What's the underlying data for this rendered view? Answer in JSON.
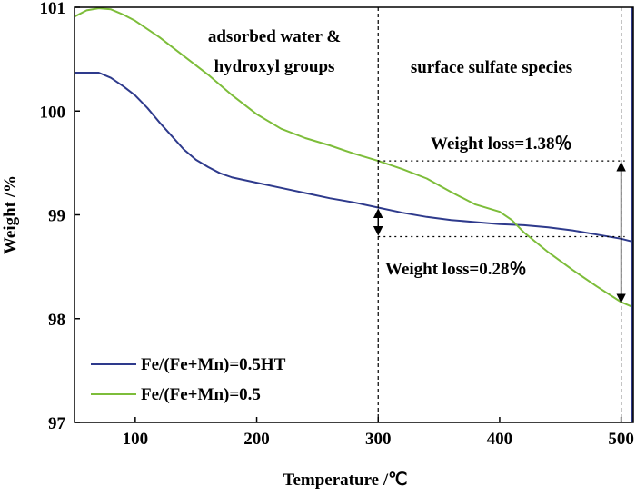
{
  "chart_data": {
    "type": "line",
    "xlabel": "Temperature /℃",
    "ylabel": "Weight /%",
    "xlim": [
      50,
      510
    ],
    "ylim": [
      97,
      101
    ],
    "xticks": [
      100,
      200,
      300,
      400,
      500
    ],
    "yticks": [
      97,
      98,
      99,
      100,
      101
    ],
    "grid": false,
    "legend_position": "bottom-left",
    "series": [
      {
        "name": "Fe/(Fe+Mn)=0.5HT",
        "color": "#2e3a8c",
        "x": [
          50,
          70,
          80,
          90,
          100,
          110,
          120,
          130,
          140,
          150,
          160,
          170,
          180,
          200,
          220,
          240,
          260,
          280,
          300,
          320,
          340,
          360,
          380,
          400,
          420,
          440,
          460,
          480,
          500,
          510
        ],
        "y": [
          100.37,
          100.37,
          100.32,
          100.24,
          100.15,
          100.03,
          99.89,
          99.76,
          99.63,
          99.53,
          99.46,
          99.4,
          99.36,
          99.31,
          99.26,
          99.21,
          99.16,
          99.12,
          99.07,
          99.02,
          98.98,
          98.95,
          98.93,
          98.91,
          98.9,
          98.88,
          98.85,
          98.81,
          98.77,
          98.74
        ]
      },
      {
        "name": "Fe/(Fe+Mn)=0.5",
        "color": "#7dbd3a",
        "x": [
          50,
          60,
          70,
          80,
          90,
          100,
          120,
          140,
          160,
          180,
          200,
          220,
          240,
          260,
          280,
          300,
          320,
          340,
          360,
          380,
          400,
          410,
          420,
          440,
          460,
          480,
          500,
          510
        ],
        "y": [
          100.91,
          100.97,
          100.99,
          100.98,
          100.93,
          100.87,
          100.71,
          100.53,
          100.35,
          100.15,
          99.97,
          99.83,
          99.74,
          99.67,
          99.59,
          99.52,
          99.44,
          99.35,
          99.22,
          99.1,
          99.03,
          98.95,
          98.83,
          98.64,
          98.47,
          98.31,
          98.16,
          98.11
        ]
      }
    ],
    "regions": [
      {
        "label_line1": "adsorbed water &",
        "label_line2": "hydroxyl groups"
      },
      {
        "label_line1": "surface sulfate species"
      }
    ],
    "boundaries_x": [
      300,
      500
    ],
    "annotations": [
      {
        "text": "Weight loss=1.38％",
        "at_x": 500,
        "from_y": 99.52,
        "to_y": 98.14
      },
      {
        "text": "Weight loss=0.28％",
        "at_x": 300,
        "from_y": 99.07,
        "to_y": 98.79
      }
    ]
  }
}
